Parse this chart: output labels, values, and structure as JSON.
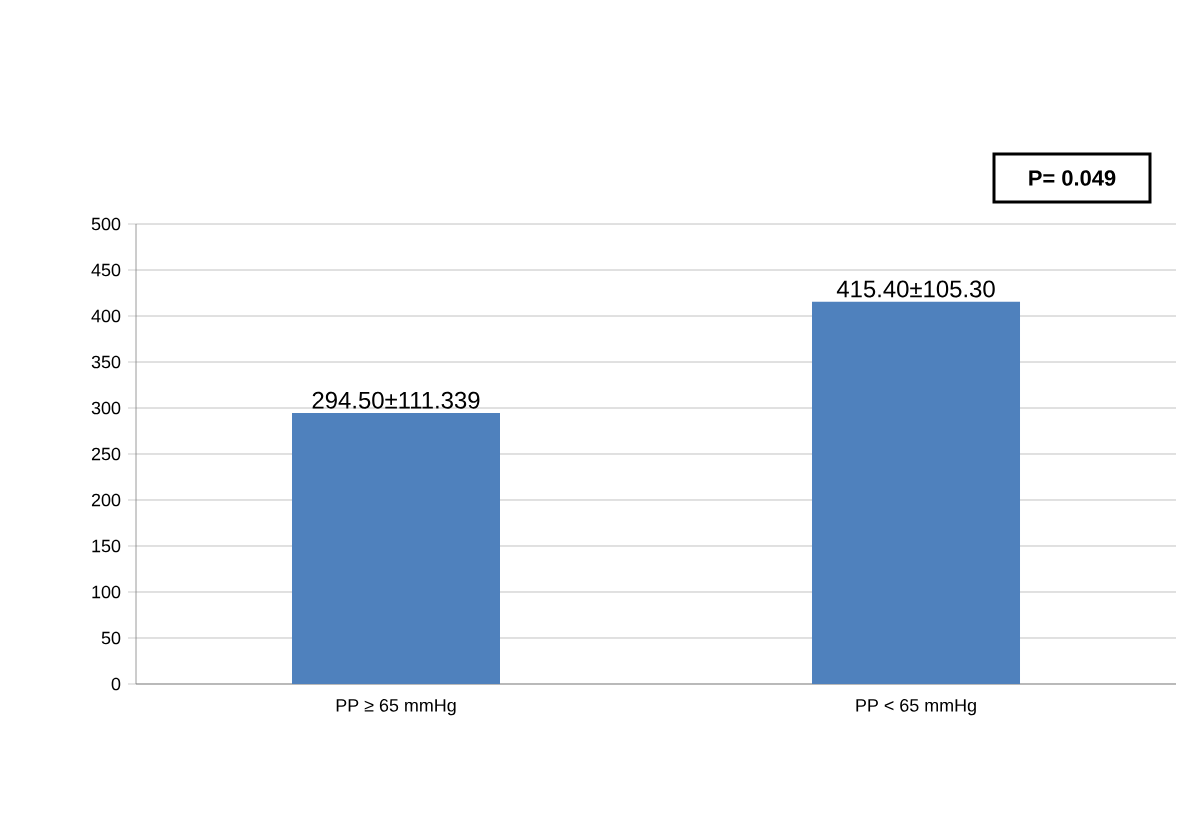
{
  "chart_data": {
    "type": "bar",
    "categories": [
      "PP ≥ 65 mmHg",
      "PP < 65 mmHg"
    ],
    "values": [
      294.5,
      415.4
    ],
    "value_labels": [
      "294.50±111.339",
      "415.40±105.30"
    ],
    "color": "#4f81bd",
    "ylim": [
      0,
      500
    ],
    "yticks": [
      0,
      50,
      100,
      150,
      200,
      250,
      300,
      350,
      400,
      450,
      500
    ],
    "grid": "y",
    "annotations": [
      "P= 0.049"
    ]
  }
}
